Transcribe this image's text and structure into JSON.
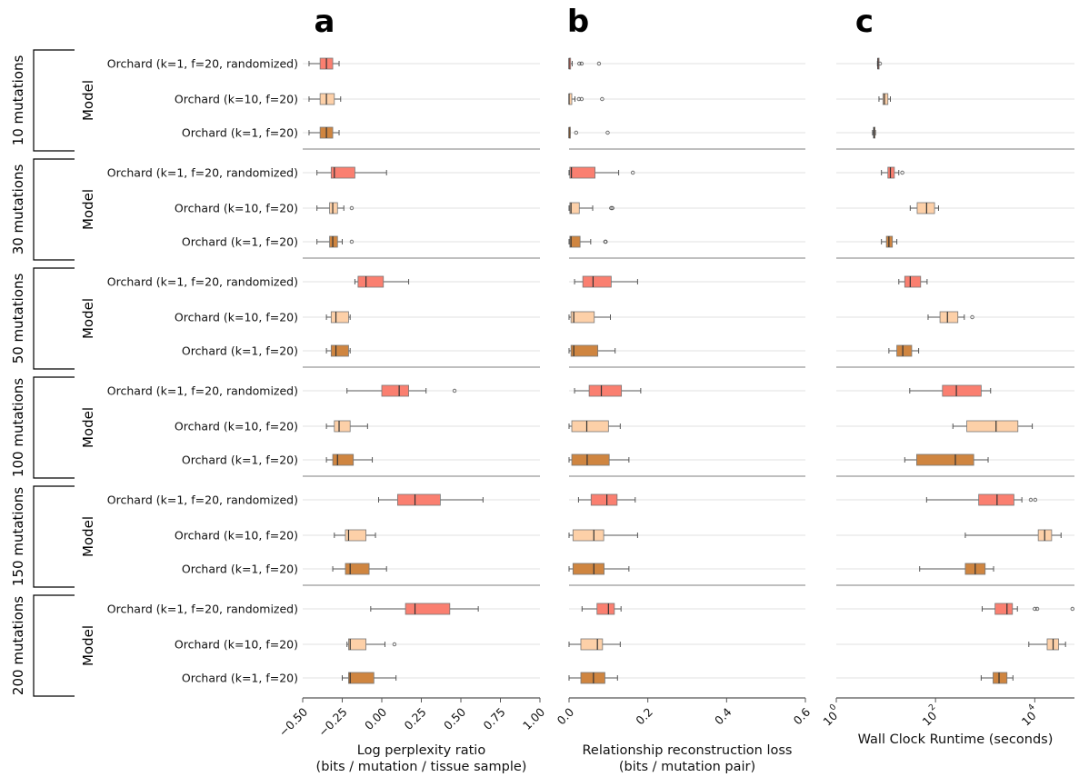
{
  "colors": {
    "randomized": "#fa7f70",
    "k10": "#fdd0a8",
    "k1": "#cf8540",
    "median": "#333333",
    "grid": "#e2e2e2",
    "separator": "#999999"
  },
  "groups": [
    {
      "label": "10 mutations",
      "y_label": "Model"
    },
    {
      "label": "30 mutations",
      "y_label": "Model"
    },
    {
      "label": "50 mutations",
      "y_label": "Model"
    },
    {
      "label": "100 mutations",
      "y_label": "Model"
    },
    {
      "label": "150 mutations",
      "y_label": "Model"
    },
    {
      "label": "200 mutations",
      "y_label": "Model"
    }
  ],
  "models": [
    {
      "label": "Orchard (k=1, f=20, randomized)",
      "color_key": "randomized"
    },
    {
      "label": "Orchard (k=10, f=20)",
      "color_key": "k10"
    },
    {
      "label": "Orchard (k=1, f=20)",
      "color_key": "k1"
    }
  ],
  "chart_data": [
    {
      "type": "boxplot",
      "panel_label": "a",
      "xlabel_line1": "Log perplexity ratio",
      "xlabel_line2": "(bits / mutation / tissue sample)",
      "scale": "linear",
      "xlim": [
        -0.5,
        1.0
      ],
      "ticks": [
        -0.5,
        -0.25,
        0.0,
        0.25,
        0.5,
        0.75,
        1.0
      ],
      "tick_labels": [
        "−0.50",
        "−0.25",
        "0.00",
        "0.25",
        "0.50",
        "0.75",
        "1.00"
      ],
      "data": [
        [
          {
            "wlo": -0.46,
            "q1": -0.39,
            "med": -0.35,
            "q3": -0.31,
            "whi": -0.27,
            "fliers": []
          },
          {
            "wlo": -0.46,
            "q1": -0.39,
            "med": -0.35,
            "q3": -0.3,
            "whi": -0.26,
            "fliers": []
          },
          {
            "wlo": -0.46,
            "q1": -0.39,
            "med": -0.35,
            "q3": -0.31,
            "whi": -0.27,
            "fliers": []
          }
        ],
        [
          {
            "wlo": -0.41,
            "q1": -0.32,
            "med": -0.3,
            "q3": -0.17,
            "whi": 0.03,
            "fliers": []
          },
          {
            "wlo": -0.41,
            "q1": -0.33,
            "med": -0.31,
            "q3": -0.28,
            "whi": -0.24,
            "fliers": [
              -0.19
            ]
          },
          {
            "wlo": -0.41,
            "q1": -0.33,
            "med": -0.31,
            "q3": -0.28,
            "whi": -0.25,
            "fliers": [
              -0.19
            ]
          }
        ],
        [
          {
            "wlo": -0.17,
            "q1": -0.15,
            "med": -0.1,
            "q3": 0.01,
            "whi": 0.17,
            "fliers": []
          },
          {
            "wlo": -0.35,
            "q1": -0.32,
            "med": -0.29,
            "q3": -0.21,
            "whi": -0.2,
            "fliers": []
          },
          {
            "wlo": -0.35,
            "q1": -0.32,
            "med": -0.29,
            "q3": -0.21,
            "whi": -0.2,
            "fliers": []
          }
        ],
        [
          {
            "wlo": -0.22,
            "q1": 0.0,
            "med": 0.11,
            "q3": 0.17,
            "whi": 0.28,
            "fliers": [
              0.46
            ]
          },
          {
            "wlo": -0.35,
            "q1": -0.3,
            "med": -0.27,
            "q3": -0.2,
            "whi": -0.09,
            "fliers": []
          },
          {
            "wlo": -0.35,
            "q1": -0.31,
            "med": -0.28,
            "q3": -0.18,
            "whi": -0.06,
            "fliers": []
          }
        ],
        [
          {
            "wlo": -0.02,
            "q1": 0.1,
            "med": 0.21,
            "q3": 0.37,
            "whi": 0.64,
            "fliers": []
          },
          {
            "wlo": -0.3,
            "q1": -0.23,
            "med": -0.21,
            "q3": -0.1,
            "whi": -0.04,
            "fliers": []
          },
          {
            "wlo": -0.31,
            "q1": -0.23,
            "med": -0.2,
            "q3": -0.08,
            "whi": 0.03,
            "fliers": []
          }
        ],
        [
          {
            "wlo": -0.07,
            "q1": 0.15,
            "med": 0.21,
            "q3": 0.43,
            "whi": 0.61,
            "fliers": []
          },
          {
            "wlo": -0.22,
            "q1": -0.21,
            "med": -0.2,
            "q3": -0.1,
            "whi": 0.02,
            "fliers": [
              0.08
            ]
          },
          {
            "wlo": -0.25,
            "q1": -0.21,
            "med": -0.2,
            "q3": -0.05,
            "whi": 0.09,
            "fliers": []
          }
        ]
      ]
    },
    {
      "type": "boxplot",
      "panel_label": "b",
      "xlabel_line1": "Relationship reconstruction loss",
      "xlabel_line2": "(bits / mutation pair)",
      "scale": "linear",
      "xlim": [
        0.0,
        0.6
      ],
      "ticks": [
        0.0,
        0.2,
        0.4,
        0.6
      ],
      "tick_labels": [
        "0.0",
        "0.2",
        "0.4",
        "0.6"
      ],
      "data": [
        [
          {
            "wlo": 0.0,
            "q1": 0.0,
            "med": 0.0,
            "q3": 0.004,
            "whi": 0.008,
            "fliers": [
              0.026,
              0.032,
              0.076
            ]
          },
          {
            "wlo": 0.0,
            "q1": 0.0,
            "med": 0.0,
            "q3": 0.007,
            "whi": 0.015,
            "fliers": [
              0.025,
              0.032,
              0.084
            ]
          },
          {
            "wlo": 0.0,
            "q1": 0.0,
            "med": 0.0,
            "q3": 0.001,
            "whi": 0.003,
            "fliers": [
              0.018,
              0.098
            ]
          }
        ],
        [
          {
            "wlo": 0.0,
            "q1": 0.002,
            "med": 0.006,
            "q3": 0.066,
            "whi": 0.126,
            "fliers": [
              0.162
            ]
          },
          {
            "wlo": 0.0,
            "q1": 0.002,
            "med": 0.005,
            "q3": 0.026,
            "whi": 0.06,
            "fliers": [
              0.107,
              0.11
            ]
          },
          {
            "wlo": 0.0,
            "q1": 0.002,
            "med": 0.005,
            "q3": 0.028,
            "whi": 0.055,
            "fliers": [
              0.092,
              0.093
            ]
          }
        ],
        [
          {
            "wlo": 0.014,
            "q1": 0.035,
            "med": 0.061,
            "q3": 0.107,
            "whi": 0.174,
            "fliers": []
          },
          {
            "wlo": 0.0,
            "q1": 0.005,
            "med": 0.012,
            "q3": 0.064,
            "whi": 0.105,
            "fliers": []
          },
          {
            "wlo": 0.0,
            "q1": 0.005,
            "med": 0.012,
            "q3": 0.073,
            "whi": 0.117,
            "fliers": []
          }
        ],
        [
          {
            "wlo": 0.014,
            "q1": 0.051,
            "med": 0.082,
            "q3": 0.133,
            "whi": 0.182,
            "fliers": []
          },
          {
            "wlo": 0.0,
            "q1": 0.007,
            "med": 0.045,
            "q3": 0.1,
            "whi": 0.13,
            "fliers": []
          },
          {
            "wlo": 0.0,
            "q1": 0.007,
            "med": 0.046,
            "q3": 0.102,
            "whi": 0.152,
            "fliers": []
          }
        ],
        [
          {
            "wlo": 0.024,
            "q1": 0.056,
            "med": 0.096,
            "q3": 0.122,
            "whi": 0.168,
            "fliers": []
          },
          {
            "wlo": 0.0,
            "q1": 0.01,
            "med": 0.063,
            "q3": 0.088,
            "whi": 0.174,
            "fliers": []
          },
          {
            "wlo": 0.0,
            "q1": 0.01,
            "med": 0.063,
            "q3": 0.089,
            "whi": 0.152,
            "fliers": []
          }
        ],
        [
          {
            "wlo": 0.033,
            "q1": 0.071,
            "med": 0.1,
            "q3": 0.115,
            "whi": 0.132,
            "fliers": []
          },
          {
            "wlo": 0.0,
            "q1": 0.03,
            "med": 0.072,
            "q3": 0.085,
            "whi": 0.13,
            "fliers": []
          },
          {
            "wlo": 0.0,
            "q1": 0.03,
            "med": 0.062,
            "q3": 0.091,
            "whi": 0.123,
            "fliers": []
          }
        ]
      ]
    },
    {
      "type": "boxplot",
      "panel_label": "c",
      "xlabel_line1": "Wall Clock Runtime (seconds)",
      "xlabel_line2": "",
      "scale": "log10",
      "xlim": [
        0.0,
        4.8
      ],
      "ticks": [
        0,
        2,
        4
      ],
      "tick_labels": [
        "10",
        "10",
        "10"
      ],
      "tick_superscripts": [
        "0",
        "2",
        "4"
      ],
      "data": [
        [
          {
            "wlo": 0.83,
            "q1": 0.835,
            "med": 0.84,
            "q3": 0.845,
            "whi": 0.85,
            "fliers": [
              0.88
            ]
          },
          {
            "wlo": 0.86,
            "q1": 0.94,
            "med": 0.97,
            "q3": 1.04,
            "whi": 1.09,
            "fliers": []
          },
          {
            "wlo": 0.73,
            "q1": 0.75,
            "med": 0.76,
            "q3": 0.78,
            "whi": 0.79,
            "fliers": []
          }
        ],
        [
          {
            "wlo": 0.91,
            "q1": 1.04,
            "med": 1.09,
            "q3": 1.17,
            "whi": 1.26,
            "fliers": [
              1.33
            ]
          },
          {
            "wlo": 1.49,
            "q1": 1.63,
            "med": 1.82,
            "q3": 1.98,
            "whi": 2.06,
            "fliers": []
          },
          {
            "wlo": 0.91,
            "q1": 1.01,
            "med": 1.06,
            "q3": 1.13,
            "whi": 1.22,
            "fliers": []
          }
        ],
        [
          {
            "wlo": 1.26,
            "q1": 1.38,
            "med": 1.49,
            "q3": 1.7,
            "whi": 1.83,
            "fliers": []
          },
          {
            "wlo": 1.85,
            "q1": 2.09,
            "med": 2.24,
            "q3": 2.45,
            "whi": 2.58,
            "fliers": [
              2.74
            ]
          },
          {
            "wlo": 1.06,
            "q1": 1.22,
            "med": 1.34,
            "q3": 1.52,
            "whi": 1.66,
            "fliers": []
          }
        ],
        [
          {
            "wlo": 1.48,
            "q1": 2.14,
            "med": 2.42,
            "q3": 2.92,
            "whi": 3.11,
            "fliers": []
          },
          {
            "wlo": 2.35,
            "q1": 2.63,
            "med": 3.22,
            "q3": 3.66,
            "whi": 3.95,
            "fliers": []
          },
          {
            "wlo": 1.38,
            "q1": 1.62,
            "med": 2.4,
            "q3": 2.77,
            "whi": 3.06,
            "fliers": []
          }
        ],
        [
          {
            "wlo": 1.82,
            "q1": 2.87,
            "med": 3.24,
            "q3": 3.58,
            "whi": 3.74,
            "fliers": [
              3.92,
              4.01
            ]
          },
          {
            "wlo": 2.6,
            "q1": 4.07,
            "med": 4.2,
            "q3": 4.34,
            "whi": 4.53,
            "fliers": []
          },
          {
            "wlo": 1.68,
            "q1": 2.6,
            "med": 2.8,
            "q3": 3.0,
            "whi": 3.17,
            "fliers": []
          }
        ],
        [
          {
            "wlo": 2.94,
            "q1": 3.2,
            "med": 3.44,
            "q3": 3.55,
            "whi": 3.65,
            "fliers": [
              4.0,
              4.05,
              4.76
            ]
          },
          {
            "wlo": 3.88,
            "q1": 4.25,
            "med": 4.37,
            "q3": 4.48,
            "whi": 4.62,
            "fliers": []
          },
          {
            "wlo": 2.92,
            "q1": 3.16,
            "med": 3.28,
            "q3": 3.44,
            "whi": 3.56,
            "fliers": []
          }
        ]
      ]
    }
  ]
}
